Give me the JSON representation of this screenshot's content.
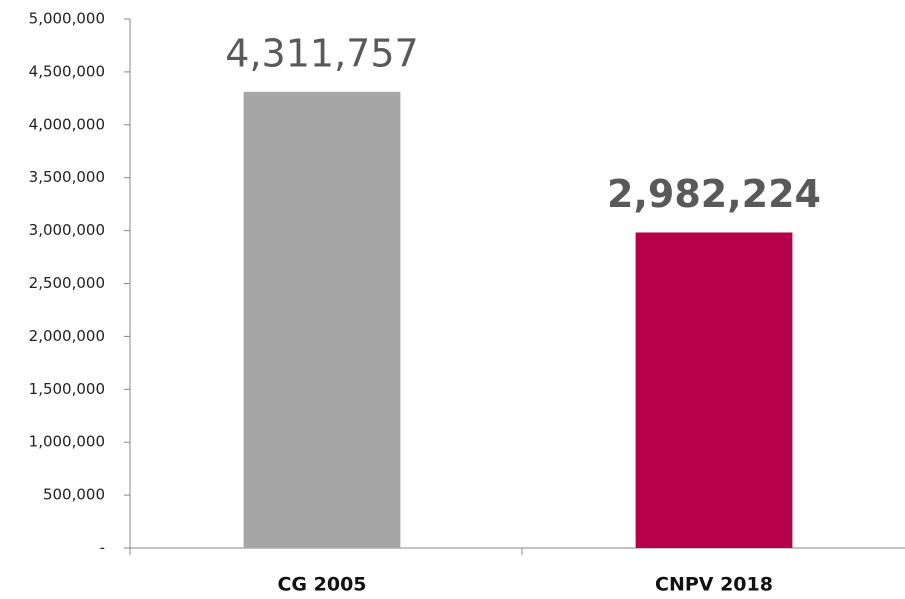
{
  "chart_data": {
    "type": "bar",
    "categories": [
      "CG 2005",
      "CNPV 2018"
    ],
    "values": [
      4311757,
      2982224
    ],
    "value_labels": [
      "4,311,757",
      "2,982,224"
    ],
    "value_label_weight": [
      "normal",
      "bold"
    ],
    "colors": [
      "#a6a6a6",
      "#b7004c"
    ],
    "ylim": [
      0,
      5000000
    ],
    "yticks": [
      {
        "value": 0,
        "label": "-"
      },
      {
        "value": 500000,
        "label": "500,000"
      },
      {
        "value": 1000000,
        "label": "1,000,000"
      },
      {
        "value": 1500000,
        "label": "1,500,000"
      },
      {
        "value": 2000000,
        "label": "2,000,000"
      },
      {
        "value": 2500000,
        "label": "2,500,000"
      },
      {
        "value": 3000000,
        "label": "3,000,000"
      },
      {
        "value": 3500000,
        "label": "3,500,000"
      },
      {
        "value": 4000000,
        "label": "4,000,000"
      },
      {
        "value": 4500000,
        "label": "4,500,000"
      },
      {
        "value": 5000000,
        "label": "5,000,000"
      }
    ],
    "grid": false
  }
}
